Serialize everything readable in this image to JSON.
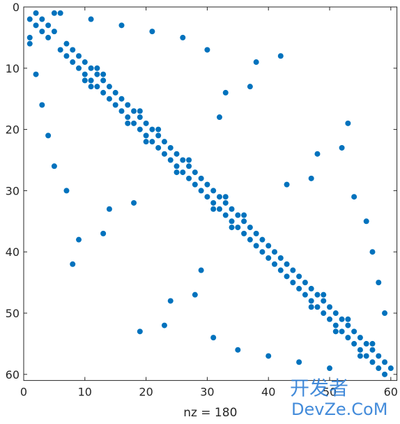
{
  "chart_data": {
    "type": "scatter",
    "xlabel": "nz = 180",
    "color": "#0072bd",
    "xlim": [
      0,
      61
    ],
    "ylim": [
      0,
      61
    ],
    "y_reversed": true,
    "xticks": [
      0,
      10,
      20,
      30,
      40,
      50,
      60
    ],
    "yticks": [
      0,
      10,
      20,
      30,
      40,
      50,
      60
    ],
    "x": [
      2,
      1,
      3,
      2,
      4,
      3,
      5,
      4,
      7,
      6,
      8,
      7,
      9,
      8,
      10,
      9,
      11,
      10,
      12,
      11,
      13,
      12,
      14,
      13,
      15,
      14,
      16,
      15,
      17,
      16,
      18,
      17,
      19,
      18,
      20,
      19,
      21,
      20,
      22,
      21,
      23,
      22,
      24,
      23,
      25,
      24,
      26,
      25,
      27,
      26,
      28,
      27,
      29,
      28,
      30,
      29,
      31,
      30,
      32,
      31,
      33,
      32,
      34,
      33,
      35,
      34,
      36,
      35,
      37,
      36,
      38,
      37,
      39,
      38,
      40,
      39,
      41,
      40,
      42,
      41,
      43,
      42,
      44,
      43,
      45,
      44,
      46,
      45,
      47,
      46,
      48,
      47,
      49,
      48,
      50,
      49,
      51,
      50,
      52,
      51,
      53,
      52,
      54,
      53,
      55,
      54,
      56,
      55,
      57,
      56,
      58,
      57,
      59,
      58,
      60,
      59,
      12,
      10,
      13,
      11,
      19,
      17,
      22,
      20,
      27,
      25,
      33,
      31,
      36,
      34,
      49,
      47,
      53,
      51,
      57,
      55,
      5,
      1,
      6,
      1,
      11,
      2,
      16,
      3,
      21,
      4,
      26,
      5,
      30,
      7,
      42,
      8,
      38,
      9,
      37,
      13,
      33,
      14,
      32,
      18,
      53,
      19,
      52,
      23,
      48,
      24,
      47,
      28,
      43,
      29,
      54,
      31,
      56,
      35,
      57,
      40,
      58,
      45,
      59,
      50
    ],
    "y": [
      1,
      2,
      2,
      3,
      3,
      4,
      4,
      5,
      6,
      7,
      7,
      8,
      8,
      9,
      9,
      10,
      10,
      11,
      11,
      12,
      12,
      13,
      13,
      14,
      14,
      15,
      15,
      16,
      16,
      17,
      17,
      18,
      18,
      19,
      19,
      20,
      20,
      21,
      21,
      22,
      22,
      23,
      23,
      24,
      24,
      25,
      25,
      26,
      26,
      27,
      27,
      28,
      28,
      29,
      29,
      30,
      30,
      31,
      31,
      32,
      32,
      33,
      33,
      34,
      34,
      35,
      35,
      36,
      36,
      37,
      37,
      38,
      38,
      39,
      39,
      40,
      40,
      41,
      41,
      42,
      42,
      43,
      43,
      44,
      44,
      45,
      45,
      46,
      46,
      47,
      47,
      48,
      48,
      49,
      49,
      50,
      50,
      51,
      51,
      52,
      52,
      53,
      53,
      54,
      54,
      55,
      55,
      56,
      56,
      57,
      57,
      58,
      58,
      59,
      59,
      60,
      10,
      12,
      11,
      13,
      17,
      19,
      20,
      22,
      25,
      27,
      31,
      33,
      34,
      36,
      47,
      49,
      51,
      53,
      55,
      57,
      1,
      5,
      1,
      6,
      2,
      11,
      3,
      16,
      4,
      21,
      5,
      26,
      7,
      30,
      8,
      42,
      9,
      38,
      13,
      37,
      14,
      33,
      18,
      32,
      19,
      53,
      23,
      52,
      24,
      48,
      28,
      47,
      29,
      43,
      31,
      54,
      35,
      56,
      40,
      57,
      45,
      58,
      50,
      59
    ],
    "watermark": [
      "开发者",
      "DevZe.CoM"
    ]
  }
}
